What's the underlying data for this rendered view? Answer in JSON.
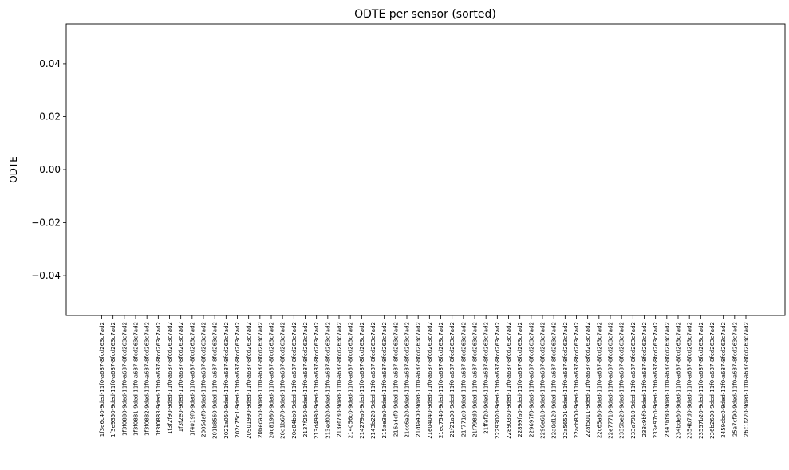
{
  "chart_data": {
    "type": "bar",
    "title": "ODTE per sensor (sorted)",
    "xlabel": "",
    "ylabel": "ODTE",
    "ylim": [
      -0.055,
      0.055
    ],
    "yticks": [
      -0.04,
      -0.02,
      0.0,
      0.02,
      0.04
    ],
    "ytick_labels": [
      "−0.04",
      "−0.02",
      "0.00",
      "0.02",
      "0.04"
    ],
    "grid": false,
    "categories": [
      "1f3e6c40-9ded-11f0-a687-8fcd263c7ad2",
      "1f3e9350-9ded-11f0-a687-8fcd263c7ad2",
      "1f3f0880-9ded-11f0-a687-8fcd263c7ad2",
      "1f3f0881-9ded-11f0-a687-8fcd263c7ad2",
      "1f3f0882-9ded-11f0-a687-8fcd263c7ad2",
      "1f3f0883-9ded-11f0-a687-8fcd263c7ad2",
      "1f3f2f90-9ded-11f0-a687-8fcd263c7ad2",
      "1f3f2e0-9ded-11f0-a687-8fcd263c7ad2",
      "1f4019f0-9ded-11f0-a687-8fcd263c7ad2",
      "2005daf0-9ded-11f0-a687-8fcd263c7ad2",
      "201b8560-9ded-11f0-a687-8fcd263c7ad2",
      "2021a050-9ded-11f0-a687-8fcd263c7ad2",
      "202c75c1-9ded-11f0-a687-8fcd263c7ad2",
      "20901990-9ded-11f0-a687-8fcd263c7ad2",
      "20becab0-9ded-11f0-a687-8fcd263c7ad2",
      "20c81980-9ded-11f0-a687-8fcd263c7ad2",
      "20d1b670-9ded-11f0-a687-8fcd263c7ad2",
      "20e84bb0-9ded-11f0-a687-8fcd263c7ad2",
      "2137f250-9ded-11f0-a687-8fcd263c7ad2",
      "213d4980-9ded-11f0-a687-8fcd263c7ad2",
      "213ed020-9ded-11f0-a687-8fcd263c7ad2",
      "213ef730-9ded-11f0-a687-8fcd263c7ad2",
      "214056c0-9ded-11f0-a687-8fcd263c7ad2",
      "214279a0-9ded-11f0-a687-8fcd263c7ad2",
      "2143b220-9ded-11f0-a687-8fcd263c7ad2",
      "215ae3a0-9ded-11f0-a687-8fcd263c7ad2",
      "216a4cf0-9ded-11f0-a687-8fcd263c7ad2",
      "21cc6a20-9ded-11f0-a687-8fcd263c7ad2",
      "21dfa400-9ded-11f0-a687-8fcd263c7ad2",
      "21e04040-9ded-11f0-a687-8fcd263c7ad2",
      "21ec7540-9ded-11f0-a687-8fcd263c7ad2",
      "21f21a90-9ded-11f0-a687-8fcd263c7ad2",
      "21f771c0-9ded-11f0-a687-8fcd263c7ad2",
      "21f798d0-9ded-11f0-a687-8fcd263c7ad2",
      "21ffaf20-9ded-11f0-a687-8fcd263c7ad2",
      "22293020-9ded-11f0-a687-8fcd263c7ad2",
      "22890360-9ded-11f0-a687-8fcd263c7ad2",
      "22899fa0-9ded-11f0-a687-8fcd263c7ad2",
      "229697f0-9ded-11f0-a687-8fcd263c7ad2",
      "2296e610-9ded-11f0-a687-8fcd263c7ad2",
      "22a0d120-9ded-11f0-a687-8fcd263c7ad2",
      "22a56501-9ded-11f0-a687-8fcd263c7ad2",
      "22acb800-9ded-11f0-a687-8fcd263c7ad2",
      "22af5011-9ded-11f0-a687-8fcd263c7ad2",
      "22c65a80-9ded-11f0-a687-8fcd263c7ad2",
      "22e77710-9ded-11f0-a687-8fcd263c7ad2",
      "2335be20-9ded-11f0-a687-8fcd263c7ad2",
      "233a7910-9ded-11f0-a687-8fcd263c7ad2",
      "233c9bf0-9ded-11f0-a687-8fcd263c7ad2",
      "233e97c0-9ded-11f0-a687-8fcd263c7ad2",
      "2347bf80-9ded-11f0-a687-8fcd263c7ad2",
      "234bde30-9ded-11f0-a687-8fcd263c7ad2",
      "2354b7d0-9ded-11f0-a687-8fcd263c7ad2",
      "23557b20-9ded-11f0-a687-8fcd263c7ad2",
      "236b2600-9ded-11f0-a687-8fcd263c7ad2",
      "2459cbc0-9ded-11f0-a687-8fcd263c7ad2",
      "25a7cf90-9ded-11f0-a687-8fcd263c7ad2",
      "26c1f220-9ded-11f0-a687-8fcd263c7ad2"
    ],
    "values": [
      0,
      0,
      0,
      0,
      0,
      0,
      0,
      0,
      0,
      0,
      0,
      0,
      0,
      0,
      0,
      0,
      0,
      0,
      0,
      0,
      0,
      0,
      0,
      0,
      0,
      0,
      0,
      0,
      0,
      0,
      0,
      0,
      0,
      0,
      0,
      0,
      0,
      0,
      0,
      0,
      0,
      0,
      0,
      0,
      0,
      0,
      0,
      0,
      0,
      0,
      0,
      0,
      0,
      0,
      0,
      0,
      0,
      0
    ],
    "bar_color": "#1f77b4"
  }
}
